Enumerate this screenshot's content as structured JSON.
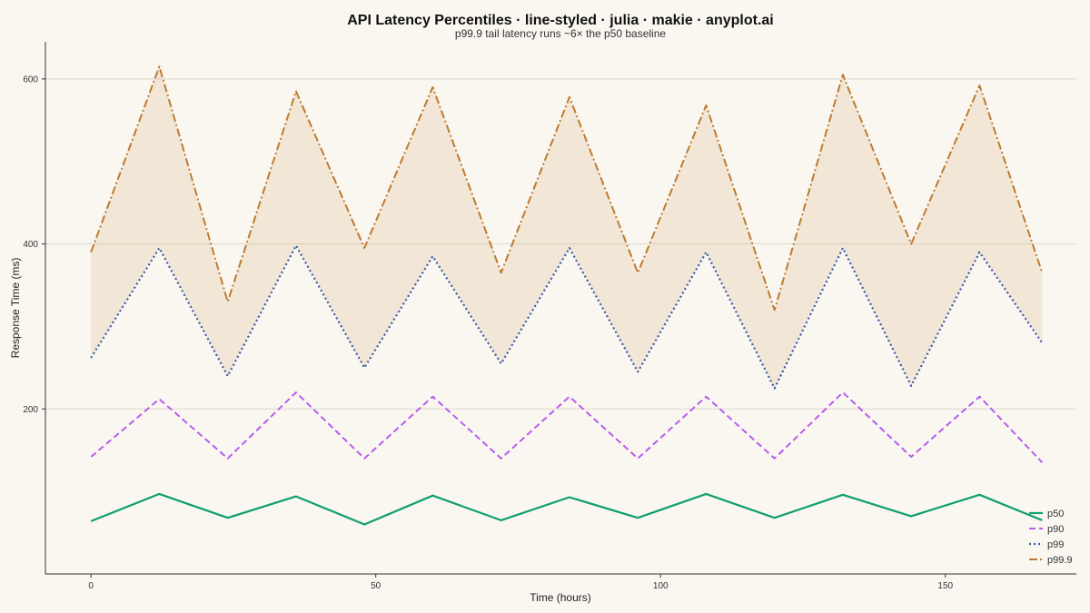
{
  "chart_data": {
    "type": "line",
    "title": "API Latency Percentiles · line-styled · julia · makie · anyplot.ai",
    "subtitle": "p99.9 tail latency runs ~6× the p50 baseline",
    "xlabel": "Time (hours)",
    "ylabel": "Response Time (ms)",
    "xlim": [
      -8,
      173
    ],
    "ylim": [
      0,
      645
    ],
    "xticks": [
      0,
      50,
      100,
      150
    ],
    "yticks": [
      200,
      400,
      600
    ],
    "grid": "horizontal",
    "legend_position": "bottom-right",
    "band": {
      "between": [
        "p99",
        "p99.9"
      ],
      "color": "#BF7A30",
      "opacity": 0.13
    },
    "x": [
      0,
      12,
      24,
      36,
      48,
      60,
      72,
      84,
      96,
      108,
      120,
      132,
      144,
      156,
      167
    ],
    "series": [
      {
        "name": "p50",
        "color": "#0E9F6E",
        "style": "solid",
        "width": 2.2,
        "values": [
          64,
          97,
          68,
          94,
          60,
          95,
          65,
          93,
          68,
          97,
          68,
          96,
          70,
          96,
          65
        ]
      },
      {
        "name": "p90",
        "color": "#B85CF0",
        "style": "dashed",
        "width": 2,
        "values": [
          142,
          212,
          140,
          220,
          140,
          215,
          140,
          215,
          140,
          215,
          140,
          220,
          142,
          215,
          135
        ]
      },
      {
        "name": "p99",
        "color": "#3A5BA8",
        "style": "dotted",
        "width": 2.2,
        "values": [
          262,
          395,
          240,
          398,
          250,
          385,
          255,
          395,
          245,
          390,
          225,
          395,
          228,
          390,
          280
        ]
      },
      {
        "name": "p99.9",
        "color": "#BF7A30",
        "style": "dashdot",
        "width": 2,
        "values": [
          390,
          615,
          330,
          585,
          395,
          590,
          365,
          578,
          365,
          568,
          320,
          605,
          400,
          592,
          365
        ]
      }
    ]
  }
}
